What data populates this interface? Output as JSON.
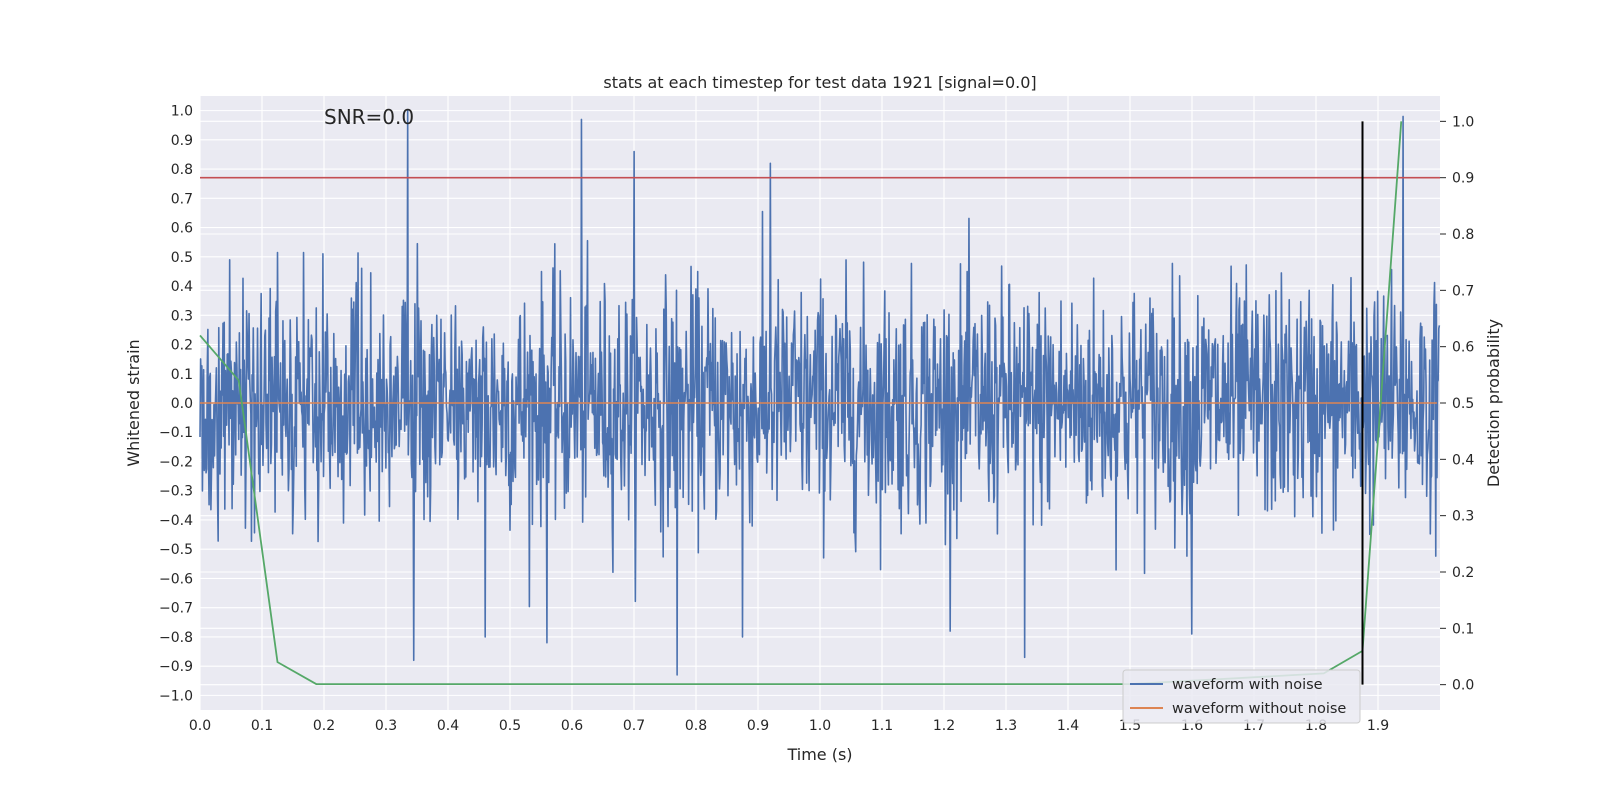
{
  "chart_data": {
    "type": "line",
    "title": "stats at each timestep for test data 1921 [signal=0.0]",
    "annotation": "SNR=0.0",
    "xlabel": "Time (s)",
    "ylabel": "Whitened strain",
    "y2label": "Detection probability",
    "xlim": [
      0.0,
      2.0
    ],
    "ylim": [
      -1.05,
      1.05
    ],
    "y2lim": [
      -0.045,
      1.045
    ],
    "xticks": [
      0.0,
      0.1,
      0.2,
      0.3,
      0.4,
      0.5,
      0.6,
      0.7,
      0.8,
      0.9,
      1.0,
      1.1,
      1.2,
      1.3,
      1.4,
      1.5,
      1.6,
      1.7,
      1.8,
      1.9
    ],
    "xtick_labels": [
      "0.0",
      "0.1",
      "0.2",
      "0.3",
      "0.4",
      "0.5",
      "0.6",
      "0.7",
      "0.8",
      "0.9",
      "1.0",
      "1.1",
      "1.2",
      "1.3",
      "1.4",
      "1.5",
      "1.6",
      "1.7",
      "1.8",
      "1.9"
    ],
    "yticks": [
      1.0,
      0.9,
      0.8,
      0.7,
      0.6,
      0.5,
      0.4,
      0.3,
      0.2,
      0.1,
      0.0,
      -0.1,
      -0.2,
      -0.3,
      -0.4,
      -0.5,
      -0.6,
      -0.7,
      -0.8,
      -0.9,
      -1.0
    ],
    "ytick_labels": [
      "1.0",
      "0.9",
      "0.8",
      "0.7",
      "0.6",
      "0.5",
      "0.4",
      "0.3",
      "0.2",
      "0.1",
      "0.0",
      "−0.1",
      "−0.2",
      "−0.3",
      "−0.4",
      "−0.5",
      "−0.6",
      "−0.7",
      "−0.8",
      "−0.9",
      "−1.0"
    ],
    "y2ticks": [
      1.0,
      0.9,
      0.8,
      0.7,
      0.6,
      0.5,
      0.4,
      0.3,
      0.2,
      0.1,
      0.0
    ],
    "y2tick_labels": [
      "1.0",
      "0.9",
      "0.8",
      "0.7",
      "0.6",
      "0.5",
      "0.4",
      "0.3",
      "0.2",
      "0.1",
      "0.0"
    ],
    "grid": true,
    "legend_position": "bottom-right",
    "series": [
      {
        "name": "waveform with noise",
        "color": "#4c72b0",
        "axis": "left",
        "style": "noise",
        "samples": 2048,
        "rms": 0.2,
        "peak_points": [
          {
            "x": 0.335,
            "y": 1.0
          },
          {
            "x": 0.615,
            "y": 0.97
          },
          {
            "x": 0.7,
            "y": 0.86
          },
          {
            "x": 0.92,
            "y": 0.82
          },
          {
            "x": 1.94,
            "y": 0.98
          },
          {
            "x": 0.77,
            "y": -0.93
          },
          {
            "x": 0.345,
            "y": -0.88
          },
          {
            "x": 1.33,
            "y": -0.87
          },
          {
            "x": 0.46,
            "y": -0.8
          },
          {
            "x": 0.56,
            "y": -0.82
          },
          {
            "x": 0.875,
            "y": -0.8
          },
          {
            "x": 1.6,
            "y": -0.79
          }
        ]
      },
      {
        "name": "waveform without noise",
        "color": "#dd8452",
        "axis": "left",
        "x": [
          0.0,
          1.995
        ],
        "y": [
          0.0,
          0.0
        ]
      },
      {
        "name": "detection probability",
        "color": "#55a868",
        "axis": "right",
        "x": [
          0.0,
          0.0625,
          0.125,
          0.1875,
          0.25,
          0.5,
          0.75,
          1.0,
          1.25,
          1.5,
          1.8125,
          1.875,
          1.9375
        ],
        "y": [
          0.62,
          0.54,
          0.04,
          0.001,
          0.001,
          0.001,
          0.001,
          0.001,
          0.001,
          0.001,
          0.02,
          0.06,
          1.0
        ]
      }
    ],
    "threshold_line": {
      "axis": "right",
      "value": 0.9,
      "color": "#c44e52"
    },
    "vertical_marker": {
      "x": 1.875,
      "ymin": 0.0,
      "ymax": 1.0,
      "axis": "right",
      "color": "#000000"
    }
  }
}
